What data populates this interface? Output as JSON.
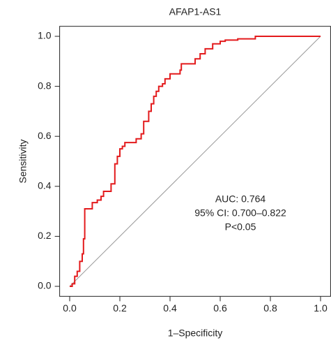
{
  "chart_data": {
    "type": "line",
    "title": "AFAP1-AS1",
    "xlabel": "1–Specificity",
    "ylabel": "Sensitivity",
    "x": [
      0,
      0.01,
      0.01,
      0.02,
      0.02,
      0.03,
      0.03,
      0.04,
      0.04,
      0.05,
      0.05,
      0.055,
      0.055,
      0.06,
      0.06,
      0.09,
      0.09,
      0.11,
      0.11,
      0.125,
      0.125,
      0.135,
      0.135,
      0.165,
      0.165,
      0.18,
      0.18,
      0.19,
      0.19,
      0.2,
      0.2,
      0.21,
      0.21,
      0.22,
      0.22,
      0.265,
      0.265,
      0.285,
      0.285,
      0.295,
      0.295,
      0.315,
      0.315,
      0.325,
      0.325,
      0.335,
      0.335,
      0.345,
      0.345,
      0.355,
      0.355,
      0.37,
      0.37,
      0.38,
      0.38,
      0.4,
      0.4,
      0.44,
      0.44,
      0.445,
      0.445,
      0.5,
      0.5,
      0.52,
      0.52,
      0.54,
      0.54,
      0.57,
      0.57,
      0.6,
      0.6,
      0.62,
      0.62,
      0.67,
      0.67,
      0.74,
      0.74,
      1
    ],
    "values": [
      0,
      0,
      0.01,
      0.01,
      0.04,
      0.04,
      0.06,
      0.06,
      0.1,
      0.1,
      0.13,
      0.13,
      0.19,
      0.19,
      0.31,
      0.31,
      0.335,
      0.335,
      0.345,
      0.345,
      0.36,
      0.36,
      0.38,
      0.38,
      0.41,
      0.41,
      0.49,
      0.49,
      0.52,
      0.52,
      0.55,
      0.55,
      0.56,
      0.56,
      0.575,
      0.575,
      0.59,
      0.59,
      0.61,
      0.61,
      0.66,
      0.66,
      0.7,
      0.7,
      0.73,
      0.73,
      0.76,
      0.76,
      0.78,
      0.78,
      0.8,
      0.8,
      0.81,
      0.81,
      0.83,
      0.83,
      0.85,
      0.85,
      0.865,
      0.865,
      0.89,
      0.89,
      0.91,
      0.91,
      0.93,
      0.93,
      0.95,
      0.95,
      0.97,
      0.97,
      0.98,
      0.98,
      0.985,
      0.985,
      0.99,
      0.99,
      1,
      1
    ],
    "color": "#e31a1c",
    "reference_color": "#999999",
    "xlim": [
      -0.04,
      1.04
    ],
    "ylim": [
      -0.04,
      1.04
    ],
    "xticks": [
      {
        "value": 0,
        "label": "0.0"
      },
      0.2,
      0.4,
      0.6,
      0.8,
      {
        "value": 1,
        "label": "1.0"
      }
    ],
    "yticks": [
      {
        "value": 0,
        "label": "0.0"
      },
      0.2,
      0.4,
      0.6,
      0.8,
      {
        "value": 1,
        "label": "1.0"
      }
    ],
    "annotations": [
      "AUC: 0.764",
      "95% CI: 0.700–0.822",
      "P<0.05"
    ]
  }
}
